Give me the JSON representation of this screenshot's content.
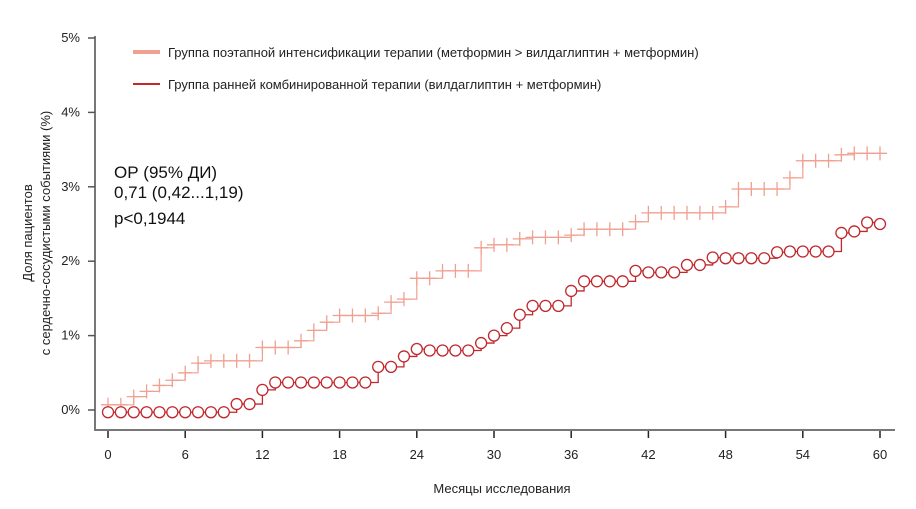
{
  "chart_data": {
    "type": "line",
    "xlabel": "Месяцы исследования",
    "ylabel": [
      "Доля пациентов",
      "с сердечно-сосудистыми событиями (%)"
    ],
    "xlim": [
      0,
      60
    ],
    "ylim": [
      0,
      5
    ],
    "x_ticks": [
      "0",
      "6",
      "12",
      "18",
      "24",
      "30",
      "36",
      "42",
      "48",
      "54",
      "60"
    ],
    "y_ticks": [
      "0%",
      "1%",
      "2%",
      "3%",
      "4%",
      "5%"
    ],
    "grid": false,
    "legend_position": "top",
    "annotation": [
      "ОР (95% ДИ)",
      "0,71 (0,42...1,19)",
      "p<0,1944"
    ],
    "series": [
      {
        "name": "Группа поэтапной интенсификации терапии (метформин > вилдаглиптин + метформин)",
        "color": "#f0a090",
        "marker": "plus",
        "x": [
          0,
          1,
          2,
          3,
          4,
          5,
          6,
          7,
          8,
          9,
          10,
          11,
          12,
          13,
          14,
          15,
          16,
          17,
          18,
          19,
          20,
          21,
          22,
          23,
          24,
          25,
          26,
          27,
          28,
          29,
          30,
          31,
          32,
          33,
          34,
          35,
          36,
          37,
          38,
          39,
          40,
          41,
          42,
          43,
          44,
          45,
          46,
          47,
          48,
          49,
          50,
          51,
          52,
          53,
          54,
          55,
          56,
          57,
          58,
          59,
          60
        ],
        "y": [
          0.07,
          0.07,
          0.18,
          0.25,
          0.33,
          0.4,
          0.5,
          0.63,
          0.66,
          0.66,
          0.66,
          0.66,
          0.84,
          0.84,
          0.84,
          0.93,
          1.07,
          1.18,
          1.27,
          1.27,
          1.27,
          1.3,
          1.45,
          1.49,
          1.77,
          1.77,
          1.87,
          1.87,
          1.87,
          2.18,
          2.22,
          2.22,
          2.3,
          2.32,
          2.32,
          2.32,
          2.35,
          2.43,
          2.43,
          2.43,
          2.43,
          2.53,
          2.65,
          2.65,
          2.65,
          2.65,
          2.65,
          2.65,
          2.73,
          2.97,
          2.97,
          2.97,
          2.97,
          3.12,
          3.35,
          3.35,
          3.35,
          3.43,
          3.45,
          3.45,
          3.45
        ]
      },
      {
        "name": "Группа ранней комбинированной терапии (вилдаглиптин + метформин)",
        "color": "#c0282d",
        "marker": "circle",
        "x": [
          0,
          1,
          2,
          3,
          4,
          5,
          6,
          7,
          8,
          9,
          10,
          11,
          12,
          13,
          14,
          15,
          16,
          17,
          18,
          19,
          20,
          21,
          22,
          23,
          24,
          25,
          26,
          27,
          28,
          29,
          30,
          31,
          32,
          33,
          34,
          35,
          36,
          37,
          38,
          39,
          40,
          41,
          42,
          43,
          44,
          45,
          46,
          47,
          48,
          49,
          50,
          51,
          52,
          53,
          54,
          55,
          56,
          57,
          58,
          59,
          60
        ],
        "y": [
          -0.03,
          -0.03,
          -0.03,
          -0.03,
          -0.03,
          -0.03,
          -0.03,
          -0.03,
          -0.03,
          -0.03,
          0.08,
          0.08,
          0.27,
          0.37,
          0.37,
          0.37,
          0.37,
          0.37,
          0.37,
          0.37,
          0.37,
          0.58,
          0.58,
          0.72,
          0.82,
          0.8,
          0.8,
          0.8,
          0.8,
          0.9,
          1.0,
          1.1,
          1.28,
          1.4,
          1.4,
          1.4,
          1.6,
          1.73,
          1.73,
          1.73,
          1.73,
          1.87,
          1.85,
          1.85,
          1.85,
          1.95,
          1.95,
          2.05,
          2.04,
          2.04,
          2.04,
          2.04,
          2.12,
          2.13,
          2.13,
          2.13,
          2.13,
          2.38,
          2.4,
          2.52,
          2.5
        ]
      }
    ]
  }
}
